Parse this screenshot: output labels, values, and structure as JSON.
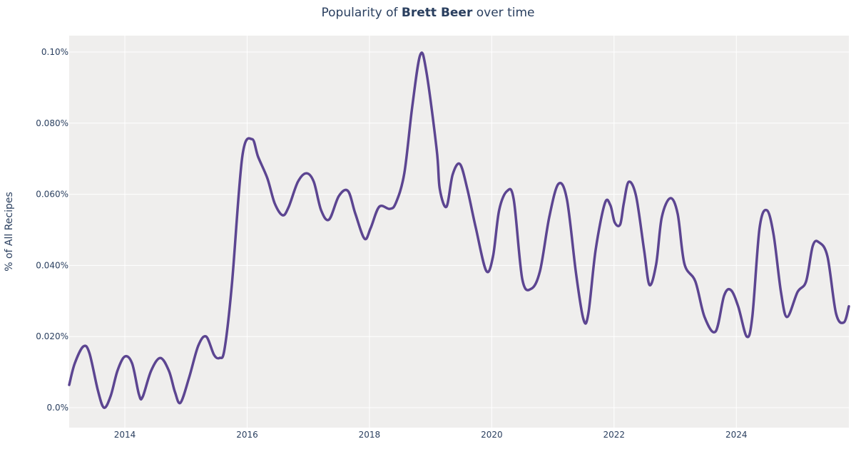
{
  "chart_data": {
    "type": "line",
    "title_prefix": "Popularity of ",
    "title_bold": "Brett Beer",
    "title_suffix": " over time",
    "xlabel": "",
    "ylabel": "% of All Recipes",
    "xlim": [
      2013.09,
      2025.84
    ],
    "ylim": [
      -0.0056,
      0.1046
    ],
    "x_ticks": [
      2014,
      2016,
      2018,
      2020,
      2022,
      2024
    ],
    "x_tick_labels": [
      "2014",
      "2016",
      "2018",
      "2020",
      "2022",
      "2024"
    ],
    "y_ticks": [
      0,
      0.02,
      0.04,
      0.06,
      0.08,
      0.1
    ],
    "y_tick_labels": [
      "0.0%",
      "0.020%",
      "0.040%",
      "0.060%",
      "0.080%",
      "0.10%"
    ],
    "grid": true,
    "colors": {
      "line": "#5c4591",
      "plot_bg": "#efeeed",
      "grid": "#ffffff"
    },
    "series": [
      {
        "x": [
          2013.09,
          2013.18,
          2013.32,
          2013.42,
          2013.56,
          2013.66,
          2013.77,
          2013.88,
          2014.0,
          2014.12,
          2014.23,
          2014.29,
          2014.43,
          2014.58,
          2014.72,
          2014.82,
          2014.91,
          2015.05,
          2015.2,
          2015.33,
          2015.46,
          2015.55,
          2015.63,
          2015.75,
          2015.92,
          2016.08,
          2016.18,
          2016.33,
          2016.45,
          2016.58,
          2016.68,
          2016.83,
          2016.97,
          2017.09,
          2017.21,
          2017.34,
          2017.5,
          2017.65,
          2017.77,
          2017.92,
          2018.02,
          2018.16,
          2018.33,
          2018.43,
          2018.57,
          2018.7,
          2018.83,
          2018.93,
          2019.1,
          2019.15,
          2019.26,
          2019.36,
          2019.48,
          2019.6,
          2019.74,
          2019.91,
          2020.02,
          2020.12,
          2020.25,
          2020.36,
          2020.5,
          2020.65,
          2020.79,
          2020.94,
          2021.09,
          2021.23,
          2021.38,
          2021.5,
          2021.58,
          2021.7,
          2021.85,
          2021.94,
          2022.01,
          2022.1,
          2022.16,
          2022.24,
          2022.36,
          2022.49,
          2022.58,
          2022.69,
          2022.78,
          2022.92,
          2023.04,
          2023.15,
          2023.33,
          2023.48,
          2023.66,
          2023.8,
          2023.91,
          2024.03,
          2024.17,
          2024.26,
          2024.38,
          2024.5,
          2024.61,
          2024.73,
          2024.83,
          2025.0,
          2025.14,
          2025.25,
          2025.35,
          2025.49,
          2025.63,
          2025.76,
          2025.84
        ],
        "y": [
          0.0064,
          0.0124,
          0.0172,
          0.0154,
          0.0048,
          0.0,
          0.0034,
          0.0104,
          0.0144,
          0.0124,
          0.0038,
          0.003,
          0.0104,
          0.014,
          0.0104,
          0.0044,
          0.0014,
          0.0084,
          0.0174,
          0.02,
          0.0148,
          0.014,
          0.0164,
          0.0345,
          0.0705,
          0.0755,
          0.0705,
          0.0645,
          0.0575,
          0.0541,
          0.0565,
          0.0635,
          0.0659,
          0.0635,
          0.0555,
          0.0529,
          0.0595,
          0.0609,
          0.0545,
          0.0475,
          0.0505,
          0.0565,
          0.0559,
          0.0575,
          0.0659,
          0.0846,
          0.0992,
          0.0946,
          0.0725,
          0.0615,
          0.0565,
          0.0655,
          0.0685,
          0.0615,
          0.0505,
          0.0385,
          0.0425,
          0.0555,
          0.0609,
          0.0585,
          0.0361,
          0.0335,
          0.0385,
          0.0535,
          0.0629,
          0.0585,
          0.0375,
          0.0248,
          0.0265,
          0.0445,
          0.0575,
          0.0569,
          0.0521,
          0.0515,
          0.0575,
          0.0635,
          0.0595,
          0.0445,
          0.0345,
          0.0405,
          0.0535,
          0.0589,
          0.0545,
          0.0405,
          0.0355,
          0.0255,
          0.0214,
          0.0315,
          0.0331,
          0.0285,
          0.02,
          0.0255,
          0.0505,
          0.0555,
          0.0485,
          0.0325,
          0.0255,
          0.0325,
          0.0355,
          0.0455,
          0.0465,
          0.0425,
          0.0265,
          0.024,
          0.0285
        ]
      }
    ]
  }
}
